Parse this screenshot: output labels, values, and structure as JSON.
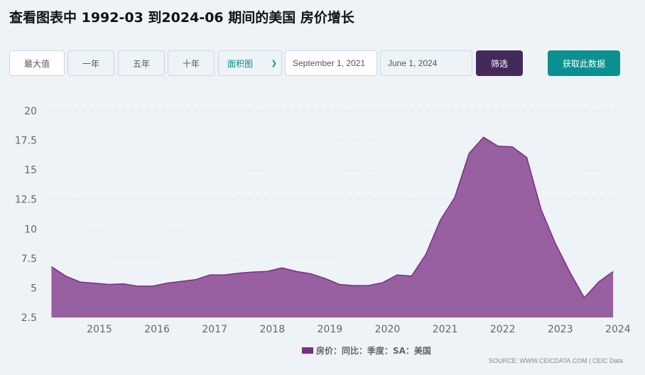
{
  "title": "查看图表中 1992-03 到2024-06 期间的美国 房价增长",
  "toolbar": {
    "max": "最大值",
    "one_year": "一年",
    "five_year": "五年",
    "ten_year": "十年",
    "chart_type": "面积图",
    "start_date": "September 1, 2021",
    "end_date": "June 1, 2024",
    "filter": "筛选",
    "get_data": "获取此数据"
  },
  "source": "SOURCE: WWW.CEICDATA.COM | CEIC Data",
  "chart_data": {
    "type": "area",
    "color": "#7b2d84",
    "x": [
      "2014-03",
      "2014-06",
      "2014-09",
      "2014-12",
      "2015-03",
      "2015-06",
      "2015-09",
      "2015-12",
      "2016-03",
      "2016-06",
      "2016-09",
      "2016-12",
      "2017-03",
      "2017-06",
      "2017-09",
      "2017-12",
      "2018-03",
      "2018-06",
      "2018-09",
      "2018-12",
      "2019-03",
      "2019-06",
      "2019-09",
      "2019-12",
      "2020-03",
      "2020-06",
      "2020-09",
      "2020-12",
      "2021-03",
      "2021-06",
      "2021-09",
      "2021-12",
      "2022-03",
      "2022-06",
      "2022-09",
      "2022-12",
      "2023-03",
      "2023-06",
      "2023-09",
      "2023-12"
    ],
    "series": [
      {
        "name": "房价：同比：季度：SA：美国",
        "values": [
          6.8,
          6.0,
          5.5,
          5.4,
          5.3,
          5.35,
          5.15,
          5.15,
          5.4,
          5.55,
          5.7,
          6.1,
          6.1,
          6.25,
          6.35,
          6.4,
          6.7,
          6.4,
          6.2,
          5.8,
          5.3,
          5.2,
          5.2,
          5.45,
          6.1,
          6.0,
          7.85,
          10.74,
          12.66,
          16.39,
          17.76,
          17.01,
          16.95,
          16.05,
          11.64,
          8.74,
          6.33,
          4.17,
          5.52,
          6.39
        ]
      }
    ],
    "ylim": [
      2.5,
      20
    ],
    "yticks": [
      "2.5",
      "5",
      "7.5",
      "10",
      "12.5",
      "15",
      "17.5",
      "20"
    ],
    "xticks": [
      "2015",
      "2016",
      "2017",
      "2018",
      "2019",
      "2020",
      "2021",
      "2022",
      "2023",
      "2024"
    ],
    "grid": true,
    "legend": "bottom"
  }
}
